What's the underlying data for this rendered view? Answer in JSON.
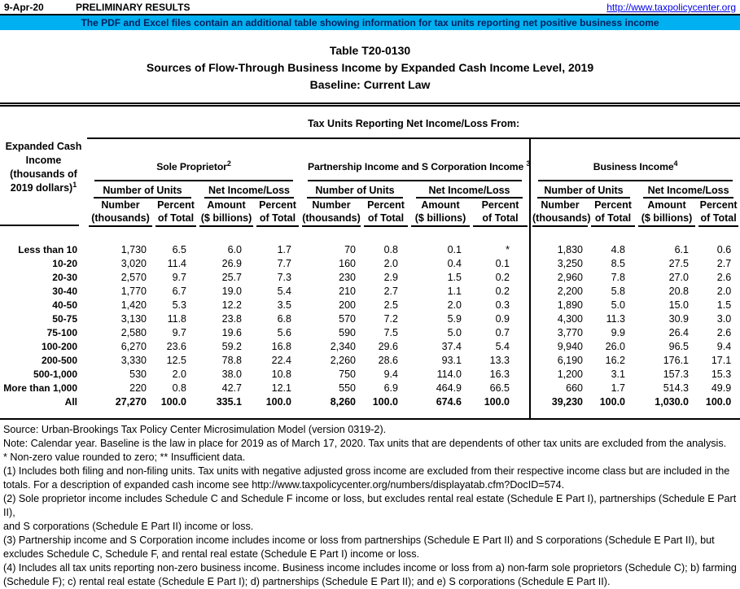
{
  "top_bar": {
    "date": "9-Apr-20",
    "status": "PRELIMINARY RESULTS",
    "link": "http://www.taxpolicycenter.org"
  },
  "banner": {
    "text": "The PDF and Excel files contain an additional table showing information for tax units reporting net positive business income",
    "bg_color": "#00B0F0",
    "text_color": "#002060"
  },
  "title": {
    "line1": "Table T20-0130",
    "line2": "Sources of Flow-Through Business Income by Expanded Cash Income Level, 2019",
    "line3": "Baseline: Current Law"
  },
  "table": {
    "span_header": "Tax Units Reporting Net Income/Loss From:",
    "row_header": {
      "l1": "Expanded Cash",
      "l2": "Income",
      "l3": "(thousands of",
      "l4": "2019 dollars)",
      "sup": "1"
    },
    "groups": [
      {
        "label": "Sole Proprietor",
        "sup": "2"
      },
      {
        "label": "Partnership Income and S Corporation Income ",
        "sup": "3"
      },
      {
        "label": "Business Income",
        "sup": "4"
      }
    ],
    "sub_headers": {
      "units": "Number of Units",
      "net": "Net Income/Loss"
    },
    "col_headers": {
      "number": {
        "l1": "Number",
        "l2": "(thousands)"
      },
      "percent": {
        "l1": "Percent",
        "l2": "of Total"
      },
      "amount": {
        "l1": "Amount",
        "l2": "($ billions)"
      }
    },
    "rows": [
      {
        "label": "Less than 10",
        "values": [
          "1,730",
          "6.5",
          "6.0",
          "1.7",
          "70",
          "0.8",
          "0.1",
          "*",
          "1,830",
          "4.8",
          "6.1",
          "0.6"
        ]
      },
      {
        "label": "10-20",
        "values": [
          "3,020",
          "11.4",
          "26.9",
          "7.7",
          "160",
          "2.0",
          "0.4",
          "0.1",
          "3,250",
          "8.5",
          "27.5",
          "2.7"
        ]
      },
      {
        "label": "20-30",
        "values": [
          "2,570",
          "9.7",
          "25.7",
          "7.3",
          "230",
          "2.9",
          "1.5",
          "0.2",
          "2,960",
          "7.8",
          "27.0",
          "2.6"
        ]
      },
      {
        "label": "30-40",
        "values": [
          "1,770",
          "6.7",
          "19.0",
          "5.4",
          "210",
          "2.7",
          "1.1",
          "0.2",
          "2,200",
          "5.8",
          "20.8",
          "2.0"
        ]
      },
      {
        "label": "40-50",
        "values": [
          "1,420",
          "5.3",
          "12.2",
          "3.5",
          "200",
          "2.5",
          "2.0",
          "0.3",
          "1,890",
          "5.0",
          "15.0",
          "1.5"
        ]
      },
      {
        "label": "50-75",
        "values": [
          "3,130",
          "11.8",
          "23.8",
          "6.8",
          "570",
          "7.2",
          "5.9",
          "0.9",
          "4,300",
          "11.3",
          "30.9",
          "3.0"
        ]
      },
      {
        "label": "75-100",
        "values": [
          "2,580",
          "9.7",
          "19.6",
          "5.6",
          "590",
          "7.5",
          "5.0",
          "0.7",
          "3,770",
          "9.9",
          "26.4",
          "2.6"
        ]
      },
      {
        "label": "100-200",
        "values": [
          "6,270",
          "23.6",
          "59.2",
          "16.8",
          "2,340",
          "29.6",
          "37.4",
          "5.4",
          "9,940",
          "26.0",
          "96.5",
          "9.4"
        ]
      },
      {
        "label": "200-500",
        "values": [
          "3,330",
          "12.5",
          "78.8",
          "22.4",
          "2,260",
          "28.6",
          "93.1",
          "13.3",
          "6,190",
          "16.2",
          "176.1",
          "17.1"
        ]
      },
      {
        "label": "500-1,000",
        "values": [
          "530",
          "2.0",
          "38.0",
          "10.8",
          "750",
          "9.4",
          "114.0",
          "16.3",
          "1,200",
          "3.1",
          "157.3",
          "15.3"
        ]
      },
      {
        "label": "More than 1,000",
        "values": [
          "220",
          "0.8",
          "42.7",
          "12.1",
          "550",
          "6.9",
          "464.9",
          "66.5",
          "660",
          "1.7",
          "514.3",
          "49.9"
        ]
      }
    ],
    "total_row": {
      "label": "All",
      "values": [
        "27,270",
        "100.0",
        "335.1",
        "100.0",
        "8,260",
        "100.0",
        "674.6",
        "100.0",
        "39,230",
        "100.0",
        "1,030.0",
        "100.0"
      ]
    }
  },
  "notes": {
    "lines": [
      "Source: Urban-Brookings Tax Policy Center Microsimulation Model (version 0319-2).",
      "Note: Calendar year. Baseline is the law in place for 2019 as of March 17, 2020. Tax units that are dependents of other tax units are excluded from the analysis.",
      "* Non-zero value rounded to zero; ** Insufficient data.",
      "(1) Includes both filing and non-filing units. Tax units with negative adjusted gross income are excluded from their respective income class but are included in the",
      "totals. For a description of expanded cash income see http://www.taxpolicycenter.org/numbers/displayatab.cfm?DocID=574.",
      "(2) Sole proprietor income includes Schedule C and Schedule F income or loss, but excludes rental real estate (Schedule E Part I), partnerships (Schedule E Part II),",
      "and S corporations (Schedule E Part II) income or loss.",
      "(3) Partnership income and S Corporation income includes income or loss from partnerships (Schedule E Part II) and S corporations (Schedule E Part II), but",
      "excludes Schedule C, Schedule F, and rental real estate (Schedule E Part I) income or loss.",
      "(4) Includes all tax units reporting non-zero business income. Business income includes income or loss from a) non-farm sole proprietors (Schedule C); b) farming",
      "(Schedule F); c) rental real estate (Schedule E Part I); d) partnerships (Schedule E Part II); and e) S corporations (Schedule E Part II)."
    ]
  }
}
